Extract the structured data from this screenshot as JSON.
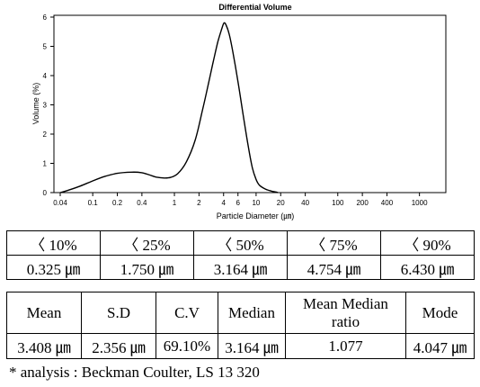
{
  "chart_data": {
    "type": "line",
    "title": "Differential Volume",
    "xlabel": "Particle Diameter (㎛)",
    "ylabel": "Volume (%)",
    "x_scale": "log",
    "xlim": [
      0.04,
      2000
    ],
    "ylim": [
      0,
      6
    ],
    "grid": false,
    "legend": "none",
    "xticks": [
      0.04,
      0.1,
      0.2,
      0.4,
      1,
      2,
      4,
      6,
      10,
      20,
      40,
      100,
      200,
      400,
      1000
    ],
    "xtick_labels": [
      "0.04",
      "0.1",
      "0.2",
      "0.4",
      "1",
      "2",
      "4",
      "6",
      "10",
      "20",
      "40",
      "100",
      "200",
      "400",
      "1000"
    ],
    "yticks": [
      0,
      1,
      2,
      3,
      4,
      5,
      6
    ],
    "ytick_labels": [
      "0",
      "1",
      "2",
      "3",
      "4",
      "5",
      "6"
    ],
    "series": [
      {
        "x": [
          0.04,
          0.05,
          0.07,
          0.1,
          0.14,
          0.2,
          0.3,
          0.4,
          0.5,
          0.6,
          0.75,
          0.9,
          1.1,
          1.4,
          1.8,
          2.2,
          2.6,
          3.0,
          3.4,
          3.8,
          4.05,
          4.3,
          4.7,
          5.2,
          6.0,
          7.0,
          8.0,
          9.0,
          10.0,
          11.0,
          13.0,
          15.5,
          17.5,
          18.5
        ],
        "y": [
          0.0,
          0.08,
          0.22,
          0.4,
          0.55,
          0.66,
          0.7,
          0.68,
          0.6,
          0.53,
          0.5,
          0.52,
          0.65,
          1.05,
          1.8,
          2.8,
          3.7,
          4.5,
          5.15,
          5.6,
          5.8,
          5.72,
          5.4,
          4.8,
          3.8,
          2.6,
          1.6,
          0.85,
          0.45,
          0.25,
          0.12,
          0.05,
          0.02,
          0.0
        ]
      }
    ],
    "line_color": "#000000"
  },
  "percentile_table": {
    "headers": [
      "〈 10%",
      "〈 25%",
      "〈 50%",
      "〈 75%",
      "〈 90%"
    ],
    "values": [
      "0.325 ㎛",
      "1.750 ㎛",
      "3.164 ㎛",
      "4.754 ㎛",
      "6.430 ㎛"
    ]
  },
  "stats_table": {
    "headers": [
      "Mean",
      "S.D",
      "C.V",
      "Median",
      "Mean Median ratio",
      "Mode"
    ],
    "values": [
      "3.408 ㎛",
      "2.356 ㎛",
      "69.10%",
      "3.164 ㎛",
      "1.077",
      "4.047 ㎛"
    ]
  },
  "footnote": "* analysis : Beckman Coulter, LS 13 320"
}
